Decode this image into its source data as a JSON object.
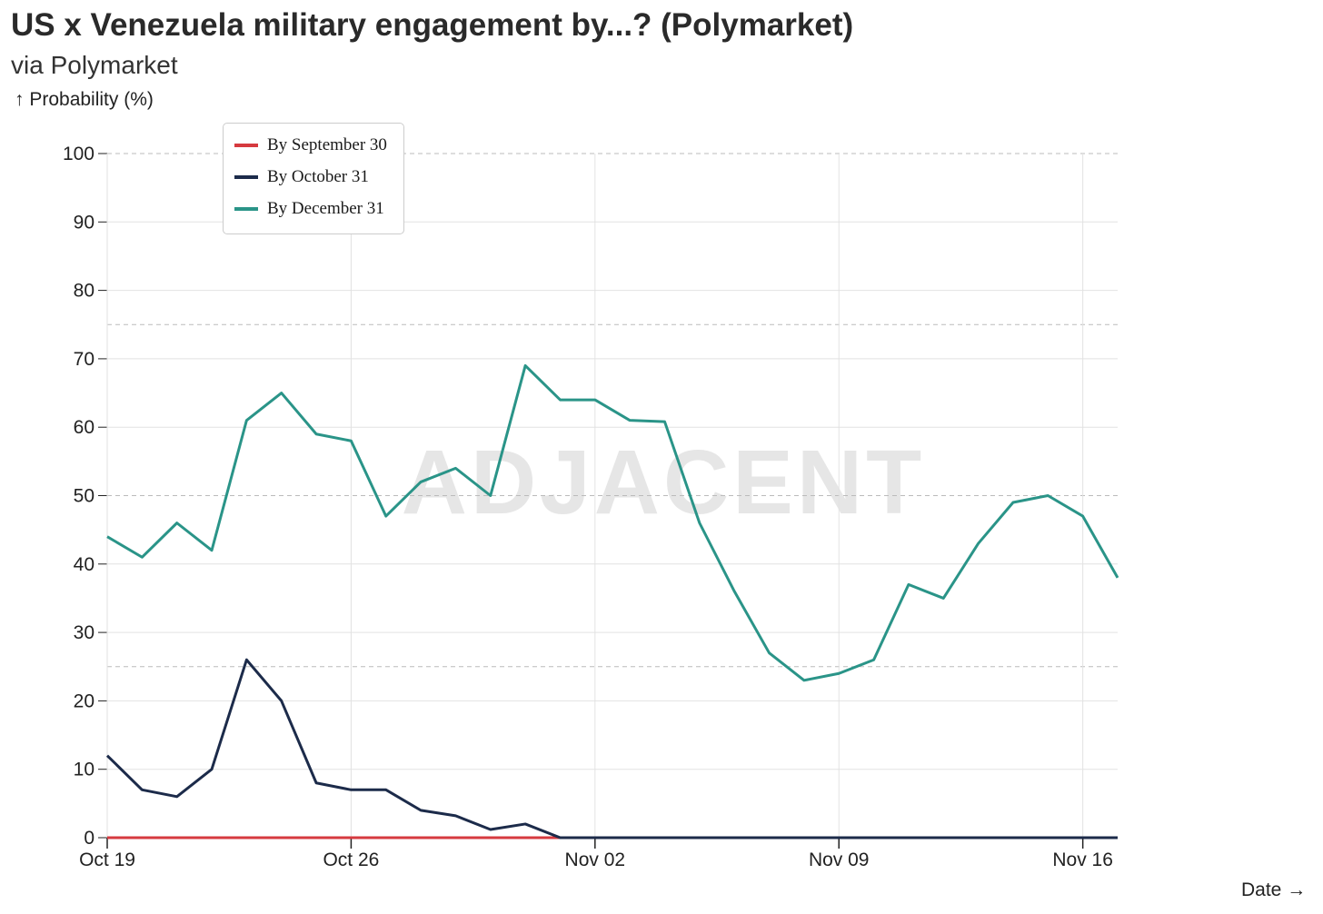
{
  "title": "US x Venezuela military engagement by...? (Polymarket)",
  "subtitle": "via Polymarket",
  "watermark": "ADJACENT",
  "chart_data": {
    "type": "line",
    "title": "US x Venezuela military engagement by...? (Polymarket)",
    "subtitle": "via Polymarket",
    "ylabel": "↑ Probability (%)",
    "xlabel": "Date →",
    "ylim": [
      0,
      100
    ],
    "yticks": [
      "0",
      "10",
      "20",
      "30",
      "40",
      "50",
      "60",
      "70",
      "80",
      "90",
      "100"
    ],
    "xticks": [
      {
        "label": "Oct 19",
        "day": 0
      },
      {
        "label": "Oct 26",
        "day": 7
      },
      {
        "label": "Nov 02",
        "day": 14
      },
      {
        "label": "Nov 09",
        "day": 21
      },
      {
        "label": "Nov 16",
        "day": 28
      }
    ],
    "x_start": "Oct 19",
    "x_days": 29,
    "legend_position": "top-left",
    "series": [
      {
        "name": "By September 30",
        "color": "#d63a3f",
        "days": [
          0,
          1,
          2,
          3,
          4,
          5,
          6,
          7,
          8,
          9,
          10,
          11,
          12,
          13
        ],
        "values": [
          0,
          0,
          0,
          0,
          0,
          0,
          0,
          0,
          0,
          0,
          0,
          0,
          0,
          0
        ]
      },
      {
        "name": "By October 31",
        "color": "#1c2b4a",
        "days": [
          0,
          1,
          2,
          3,
          4,
          5,
          6,
          7,
          8,
          9,
          10,
          11,
          12,
          13,
          14,
          15,
          16,
          17,
          18,
          19,
          20,
          21,
          22,
          23,
          24,
          25,
          26,
          27,
          28,
          29
        ],
        "values": [
          12,
          7,
          6,
          10,
          26,
          20,
          8,
          7,
          7,
          4,
          3.2,
          1.2,
          2,
          0,
          0,
          0,
          0,
          0,
          0,
          0,
          0,
          0,
          0,
          0,
          0,
          0,
          0,
          0,
          0,
          0
        ]
      },
      {
        "name": "By December 31",
        "color": "#2a9488",
        "days": [
          0,
          1,
          2,
          3,
          4,
          5,
          6,
          7,
          8,
          9,
          10,
          11,
          12,
          13,
          14,
          15,
          16,
          17,
          18,
          19,
          20,
          21,
          22,
          23,
          24,
          25,
          26,
          27,
          28,
          29
        ],
        "values": [
          44,
          41,
          46,
          42,
          61,
          65,
          59,
          58,
          47,
          52,
          54,
          50,
          69,
          64,
          64,
          61,
          60.8,
          46,
          36,
          27,
          23,
          24,
          26,
          37,
          35,
          43,
          49,
          50,
          47,
          38
        ]
      }
    ]
  }
}
